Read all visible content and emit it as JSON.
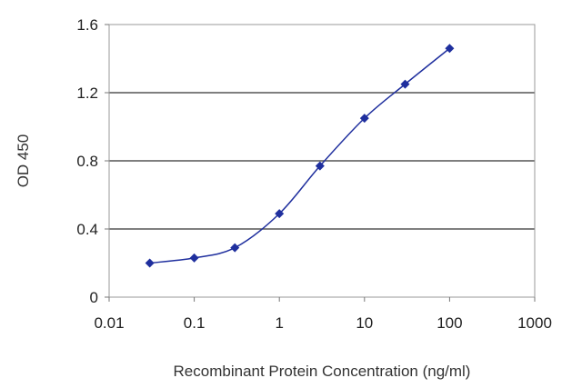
{
  "chart_data": {
    "type": "line",
    "title": "",
    "xlabel": "Recombinant Protein Concentration (ng/ml)",
    "ylabel": "OD 450",
    "x_scale": "log",
    "xlim": [
      0.01,
      1000
    ],
    "ylim": [
      0,
      1.6
    ],
    "x_ticks": [
      0.01,
      0.1,
      1,
      10,
      100,
      1000
    ],
    "x_tick_labels": [
      "0.01",
      "0.1",
      "1",
      "10",
      "100",
      "1000"
    ],
    "y_ticks": [
      0,
      0.4,
      0.8,
      1.2,
      1.6
    ],
    "y_tick_labels": [
      "0",
      "0.4",
      "0.8",
      "1.2",
      "1.6"
    ],
    "gridlines": "horizontal",
    "legend": "none",
    "series": [
      {
        "x": [
          0.03,
          0.1,
          0.3,
          1,
          3,
          10,
          30,
          100
        ],
        "y": [
          0.2,
          0.23,
          0.29,
          0.49,
          0.77,
          1.05,
          1.25,
          1.46
        ],
        "color": "#1f2f9e"
      }
    ]
  }
}
